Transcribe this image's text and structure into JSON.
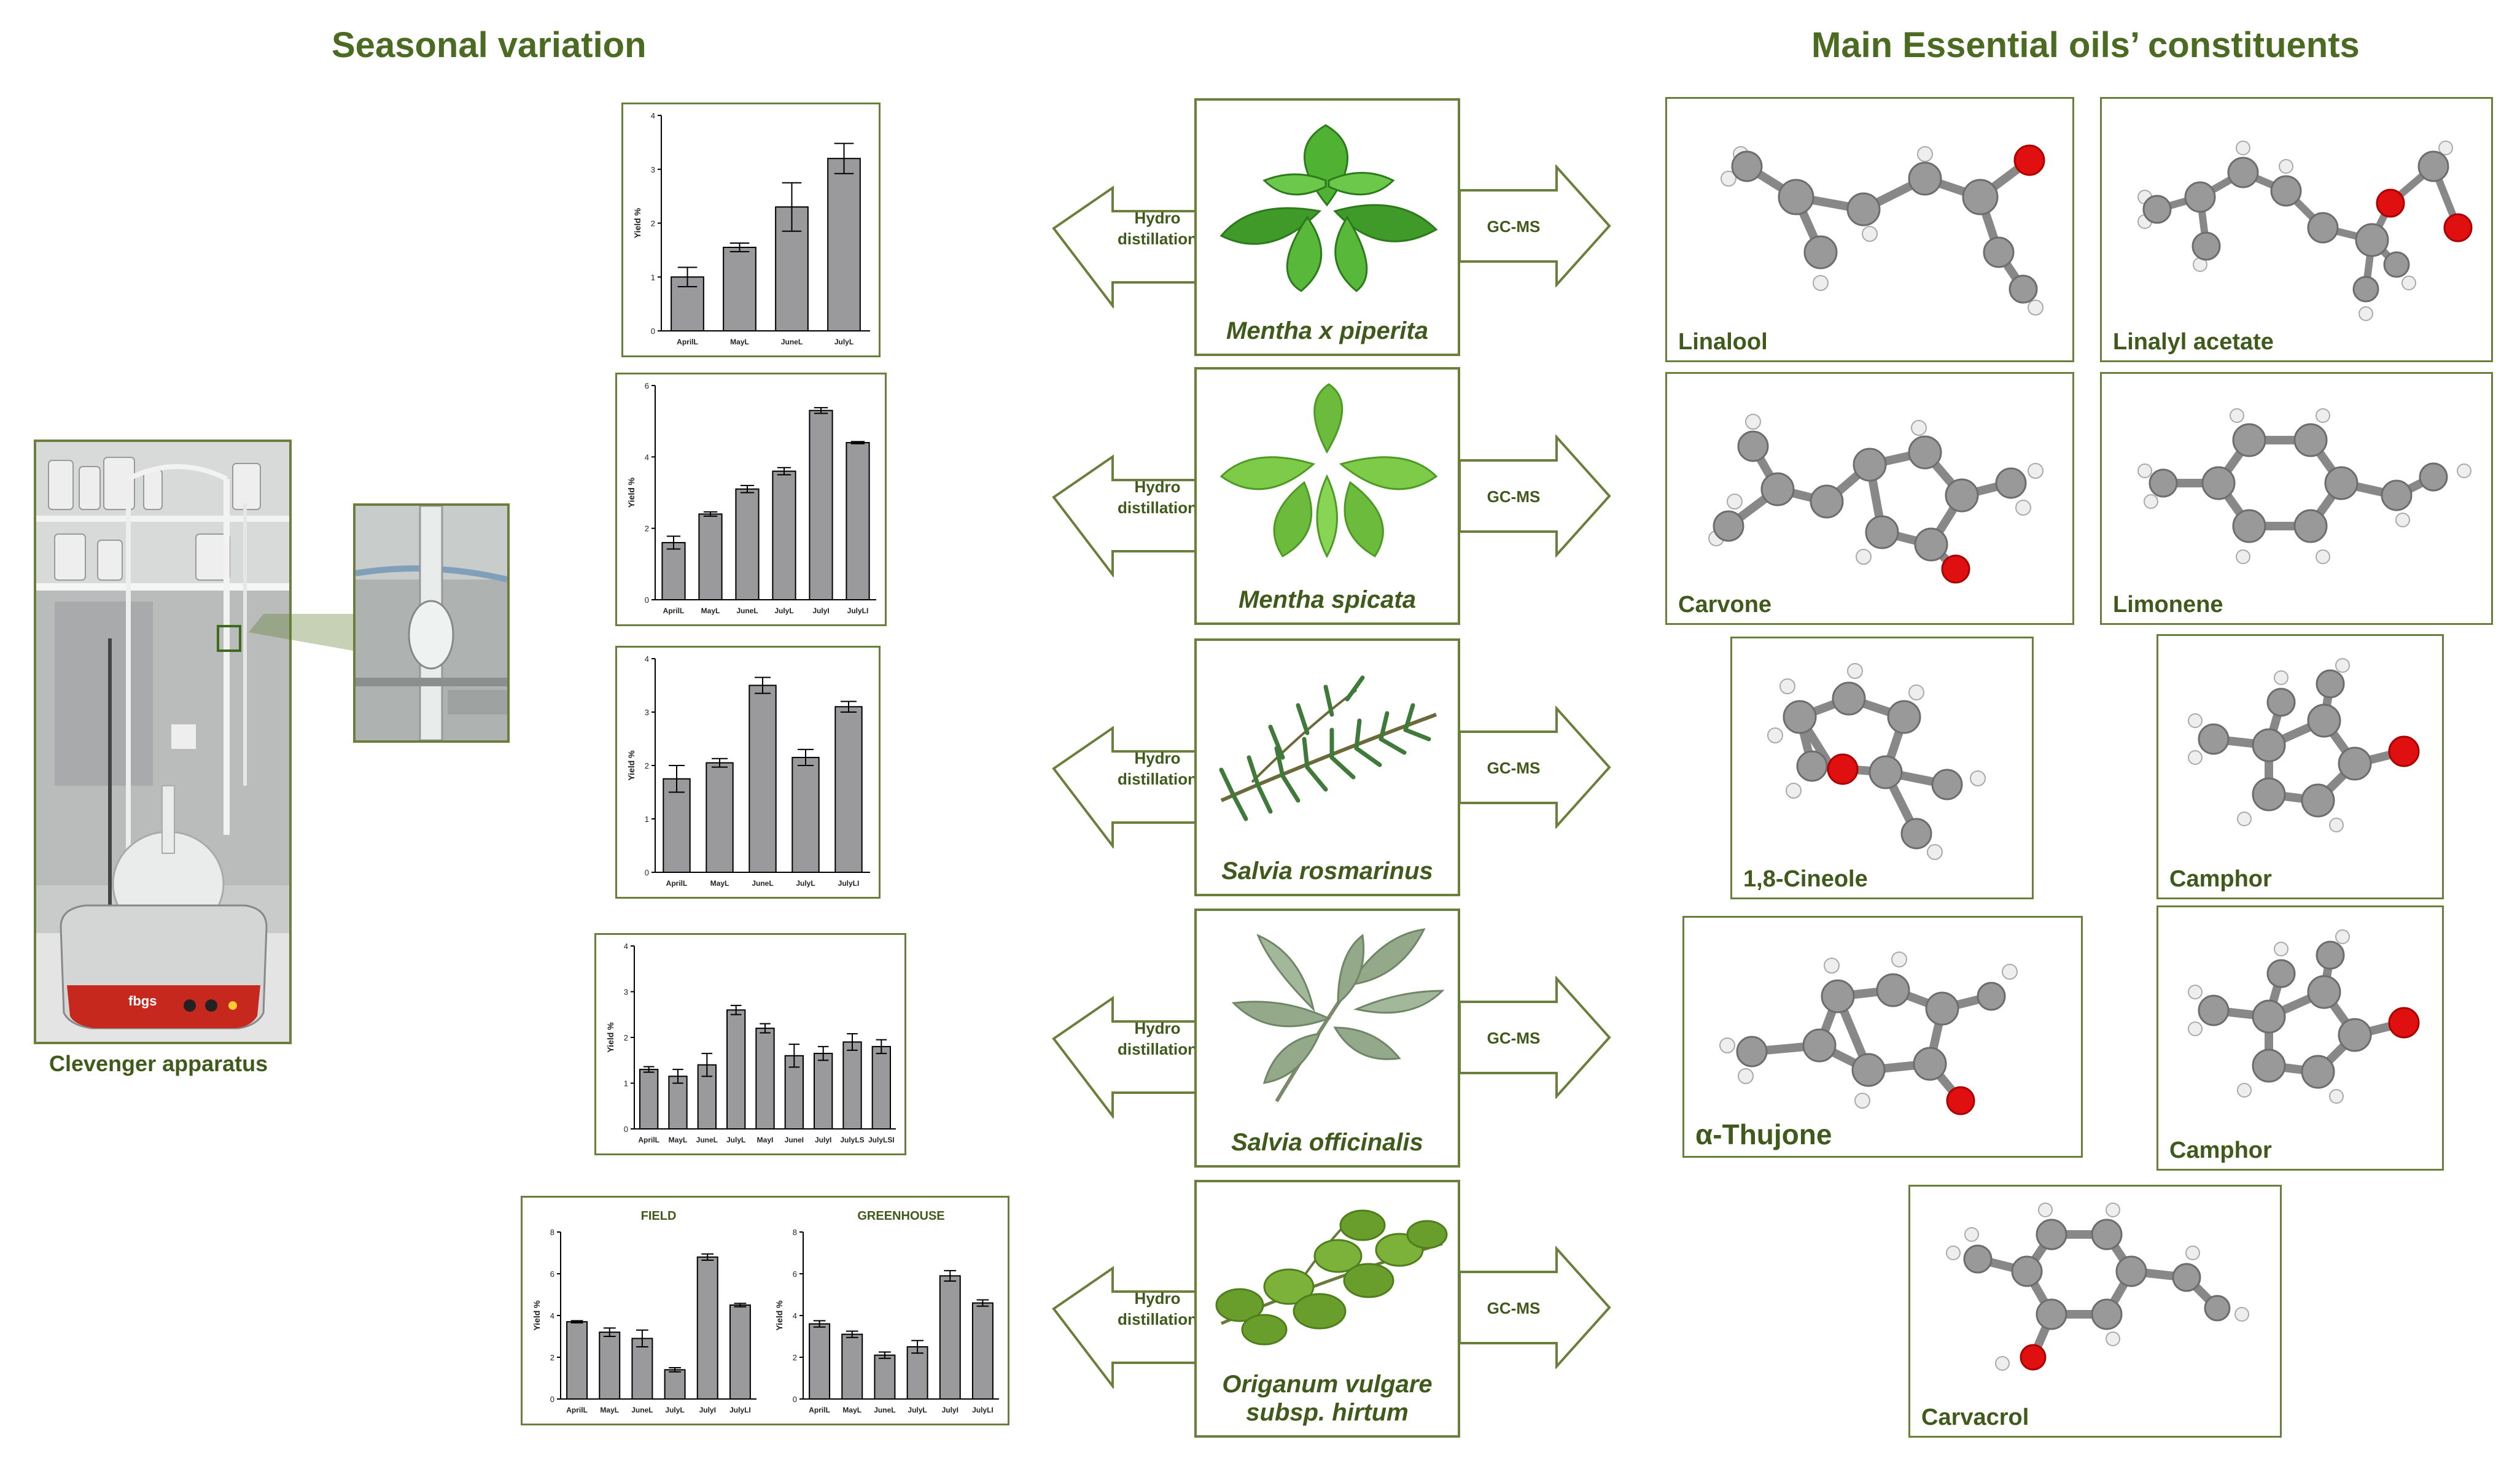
{
  "headings": {
    "seasonal": "Seasonal variation",
    "constituents": "Main Essential oils’ constituents"
  },
  "apparatus": {
    "caption": "Clevenger apparatus",
    "heater_brand": "fbgs"
  },
  "arrows": {
    "left_label": [
      "Hydro",
      "distillation"
    ],
    "right_label": "GC-MS"
  },
  "plants": [
    {
      "name_lines": [
        "Mentha x piperita"
      ],
      "italic": [
        true
      ]
    },
    {
      "name_lines": [
        "Mentha spicata"
      ],
      "italic": [
        true
      ]
    },
    {
      "name_lines": [
        "Salvia rosmarinus"
      ],
      "italic": [
        true
      ]
    },
    {
      "name_lines": [
        "Salvia officinalis"
      ],
      "italic": [
        true
      ]
    },
    {
      "name_lines": [
        "Origanum vulgare",
        "subsp. hirtum"
      ],
      "italic": [
        true,
        false
      ]
    }
  ],
  "molecules": [
    {
      "label": "Linalool"
    },
    {
      "label": "Linalyl acetate"
    },
    {
      "label": "Carvone"
    },
    {
      "label": "Limonene"
    },
    {
      "label": "1,8-Cineole"
    },
    {
      "label": "Camphor"
    },
    {
      "label": "α-Thujone"
    },
    {
      "label": "Camphor"
    },
    {
      "label": "Carvacrol"
    }
  ],
  "colors": {
    "heading": "#4b6a22",
    "frame": "#6b7f3c",
    "bar": "#9a9a9c",
    "atom_carbon": "#8c8c8c",
    "atom_oxygen": "#e01010",
    "atom_hydrogen": "#e8e8e8"
  },
  "chart_data": [
    {
      "type": "bar",
      "ylabel": "Yield %",
      "ylim": [
        0,
        4
      ],
      "yticks": [
        0,
        1,
        2,
        3,
        4
      ],
      "categories": [
        "AprilL",
        "MayL",
        "JuneL",
        "JulyL"
      ],
      "values": [
        1.0,
        1.55,
        2.3,
        3.2
      ],
      "errors": [
        0.18,
        0.08,
        0.45,
        0.28
      ]
    },
    {
      "type": "bar",
      "ylabel": "Yield %",
      "ylim": [
        0,
        6
      ],
      "yticks": [
        0,
        2,
        4,
        6
      ],
      "categories": [
        "AprilL",
        "MayL",
        "JuneL",
        "JulyL",
        "JulyI",
        "JulyLI"
      ],
      "values": [
        1.6,
        2.4,
        3.1,
        3.6,
        5.3,
        4.4
      ],
      "errors": [
        0.18,
        0.06,
        0.1,
        0.1,
        0.08,
        0.03
      ]
    },
    {
      "type": "bar",
      "ylabel": "Yield %",
      "ylim": [
        0,
        4
      ],
      "yticks": [
        0,
        1,
        2,
        3,
        4
      ],
      "categories": [
        "AprilL",
        "MayL",
        "JuneL",
        "JulyL",
        "JulyLI"
      ],
      "values": [
        1.75,
        2.05,
        3.5,
        2.15,
        3.1
      ],
      "errors": [
        0.25,
        0.08,
        0.15,
        0.15,
        0.1
      ]
    },
    {
      "type": "bar",
      "ylabel": "Yield %",
      "ylim": [
        0,
        4
      ],
      "yticks": [
        0,
        1,
        2,
        3,
        4
      ],
      "categories": [
        "AprilL",
        "MayL",
        "JuneL",
        "JulyL",
        "MayI",
        "JuneI",
        "JulyI",
        "JulyLS",
        "JulyLSI"
      ],
      "values": [
        1.3,
        1.15,
        1.4,
        2.6,
        2.2,
        1.6,
        1.65,
        1.9,
        1.8
      ],
      "errors": [
        0.06,
        0.15,
        0.25,
        0.1,
        0.1,
        0.25,
        0.15,
        0.18,
        0.15
      ]
    },
    {
      "type": "bar",
      "title": "FIELD",
      "ylabel": "Yield %",
      "ylim": [
        0,
        8
      ],
      "yticks": [
        0,
        2,
        4,
        6,
        8
      ],
      "categories": [
        "AprilL",
        "MayL",
        "JuneL",
        "JulyL",
        "JulyI",
        "JulyLI"
      ],
      "values": [
        3.7,
        3.2,
        2.9,
        1.4,
        6.8,
        4.5
      ],
      "errors": [
        0.05,
        0.2,
        0.4,
        0.1,
        0.15,
        0.08
      ]
    },
    {
      "type": "bar",
      "title": "GREENHOUSE",
      "ylabel": "Yield %",
      "ylim": [
        0,
        8
      ],
      "yticks": [
        0,
        2,
        4,
        6,
        8
      ],
      "categories": [
        "AprilL",
        "MayL",
        "JuneL",
        "JulyL",
        "JulyI",
        "JulyLI"
      ],
      "values": [
        3.6,
        3.1,
        2.1,
        2.5,
        5.9,
        4.6
      ],
      "errors": [
        0.15,
        0.15,
        0.15,
        0.3,
        0.25,
        0.15
      ]
    }
  ]
}
